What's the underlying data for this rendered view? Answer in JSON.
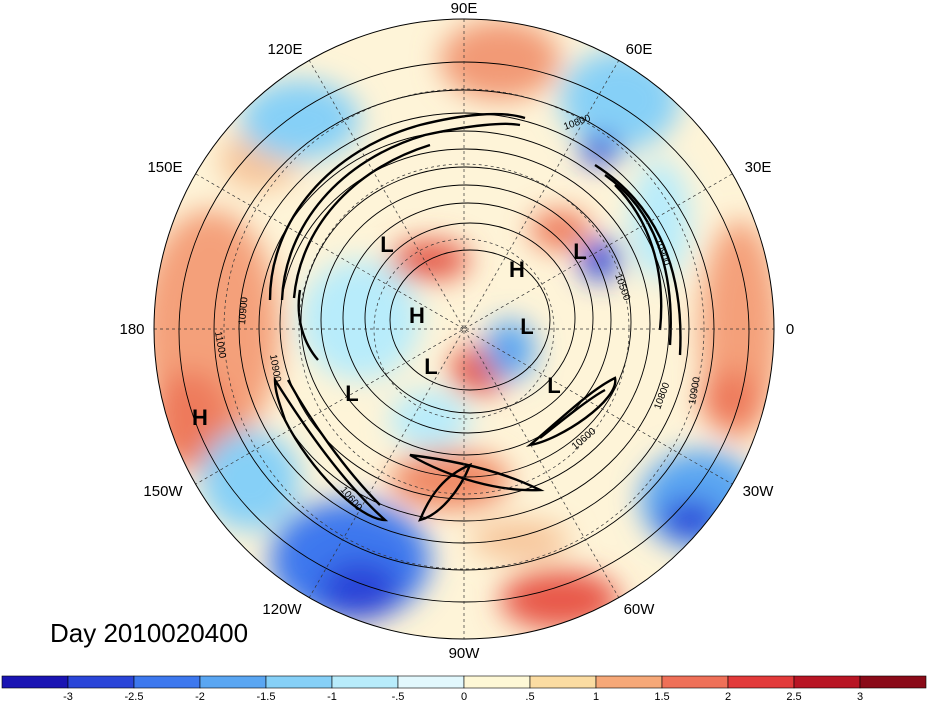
{
  "title": "Day 2010020400",
  "longitude_labels": [
    "90E",
    "60E",
    "30E",
    "0",
    "30W",
    "60W",
    "90W",
    "120W",
    "150W",
    "180",
    "150E",
    "120E"
  ],
  "pressure_centers": [
    {
      "label": "L"
    },
    {
      "label": "H"
    },
    {
      "label": "L"
    },
    {
      "label": "H"
    },
    {
      "label": "L"
    },
    {
      "label": "L"
    },
    {
      "label": "L"
    },
    {
      "label": "L"
    },
    {
      "label": "H"
    }
  ],
  "contour_labels": [
    "10800",
    "10900",
    "10900",
    "10500",
    "11000",
    "10900",
    "10600",
    "10800",
    "10900",
    "10600"
  ],
  "colorbar": {
    "labels": [
      "-3",
      "-2.5",
      "-2",
      "-1.5",
      "-1",
      "-.5",
      "0",
      ".5",
      "1",
      "1.5",
      "2",
      "2.5",
      "3"
    ],
    "colors": [
      "#1a14b3",
      "#2a45d8",
      "#3d78ee",
      "#5aa6f2",
      "#86d0f7",
      "#b8ecfb",
      "#e2f8fd",
      "#fef8d6",
      "#fbdca2",
      "#f6a878",
      "#ef7058",
      "#e23a3a",
      "#b81524",
      "#8a0a18"
    ]
  }
}
